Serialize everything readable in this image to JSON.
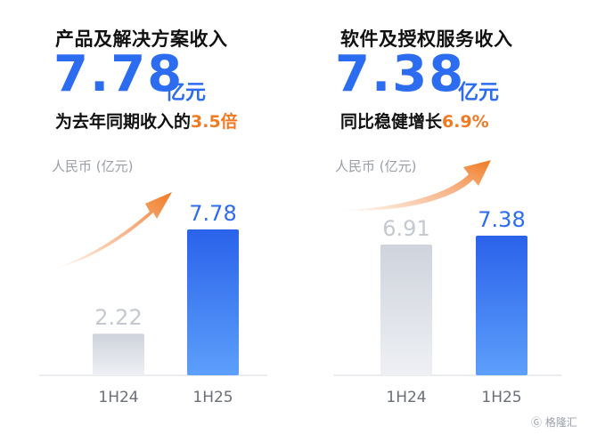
{
  "left": {
    "title": "产品及解决方案收入",
    "big_number": "7.78",
    "unit": "亿元",
    "sub_prefix": "为去年同期收入的",
    "sub_highlight": "3.5倍",
    "unit_label": "人民币 (亿元)"
  },
  "right": {
    "title": "软件及授权服务收入",
    "big_number": "7.38",
    "unit": "亿元",
    "sub_prefix": "同比稳健增长",
    "sub_highlight": "6.9%",
    "unit_label": "人民币 (亿元)"
  },
  "watermark": "格隆汇",
  "colors": {
    "accent": "#2c6cf0",
    "highlight": "#f07a22",
    "bar_prior": "#d9dce3",
    "arrow": "#f07a22"
  },
  "chart_data": [
    {
      "type": "bar",
      "title": "产品及解决方案收入",
      "ylabel": "人民币 (亿元)",
      "categories": [
        "1H24",
        "1H25"
      ],
      "values": [
        2.22,
        7.78
      ],
      "value_labels": [
        "2.22",
        "7.78"
      ],
      "ylim": [
        0,
        7.78
      ],
      "grid": false
    },
    {
      "type": "bar",
      "title": "软件及授权服务收入",
      "ylabel": "人民币 (亿元)",
      "categories": [
        "1H24",
        "1H25"
      ],
      "values": [
        6.91,
        7.38
      ],
      "value_labels": [
        "6.91",
        "7.38"
      ],
      "ylim": [
        0,
        7.38
      ],
      "grid": false
    }
  ]
}
